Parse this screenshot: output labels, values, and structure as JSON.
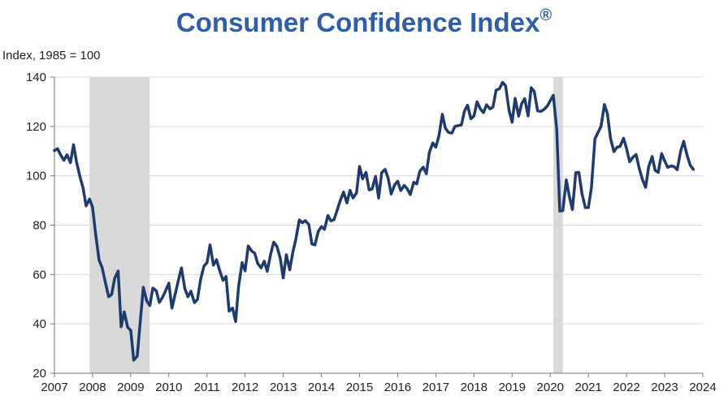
{
  "chart_data": {
    "type": "line",
    "title": "Consumer Confidence Index",
    "title_mark": "®",
    "ylabel": "Index, 1985 = 100",
    "xlabel": "",
    "ylim": [
      20,
      140
    ],
    "xlim": [
      2007,
      2024
    ],
    "y_ticks": [
      20,
      40,
      60,
      80,
      100,
      120,
      140
    ],
    "x_ticks": [
      2007,
      2008,
      2009,
      2010,
      2011,
      2012,
      2013,
      2014,
      2015,
      2016,
      2017,
      2018,
      2019,
      2020,
      2021,
      2022,
      2023,
      2024
    ],
    "grid": "horizontal",
    "line_color": "#1f3b6e",
    "recession_color": "#d9d9d9",
    "recessions": [
      [
        2007.92,
        2009.5
      ],
      [
        2020.08,
        2020.33
      ]
    ],
    "series": [
      {
        "x": [
          2007.0,
          2007.08,
          2007.17,
          2007.25,
          2007.33,
          2007.42,
          2007.5,
          2007.58,
          2007.67,
          2007.75,
          2007.83,
          2007.92,
          2008.0,
          2008.08,
          2008.17,
          2008.25,
          2008.33,
          2008.42,
          2008.5,
          2008.58,
          2008.67,
          2008.75,
          2008.83,
          2008.92,
          2009.0,
          2009.08,
          2009.17,
          2009.25,
          2009.33,
          2009.42,
          2009.5,
          2009.58,
          2009.67,
          2009.75,
          2009.83,
          2009.92,
          2010.0,
          2010.08,
          2010.17,
          2010.25,
          2010.33,
          2010.42,
          2010.5,
          2010.58,
          2010.67,
          2010.75,
          2010.83,
          2010.92,
          2011.0,
          2011.08,
          2011.17,
          2011.25,
          2011.33,
          2011.42,
          2011.5,
          2011.58,
          2011.67,
          2011.75,
          2011.83,
          2011.92,
          2012.0,
          2012.08,
          2012.17,
          2012.25,
          2012.33,
          2012.42,
          2012.5,
          2012.58,
          2012.67,
          2012.75,
          2012.83,
          2012.92,
          2013.0,
          2013.08,
          2013.17,
          2013.25,
          2013.33,
          2013.42,
          2013.5,
          2013.58,
          2013.67,
          2013.75,
          2013.83,
          2013.92,
          2014.0,
          2014.08,
          2014.17,
          2014.25,
          2014.33,
          2014.42,
          2014.5,
          2014.58,
          2014.67,
          2014.75,
          2014.83,
          2014.92,
          2015.0,
          2015.08,
          2015.17,
          2015.25,
          2015.33,
          2015.42,
          2015.5,
          2015.58,
          2015.67,
          2015.75,
          2015.83,
          2015.92,
          2016.0,
          2016.08,
          2016.17,
          2016.25,
          2016.33,
          2016.42,
          2016.5,
          2016.58,
          2016.67,
          2016.75,
          2016.83,
          2016.92,
          2017.0,
          2017.08,
          2017.17,
          2017.25,
          2017.33,
          2017.42,
          2017.5,
          2017.58,
          2017.67,
          2017.75,
          2017.83,
          2017.92,
          2018.0,
          2018.08,
          2018.17,
          2018.25,
          2018.33,
          2018.42,
          2018.5,
          2018.58,
          2018.67,
          2018.75,
          2018.83,
          2018.92,
          2019.0,
          2019.08,
          2019.17,
          2019.25,
          2019.33,
          2019.42,
          2019.5,
          2019.58,
          2019.67,
          2019.75,
          2019.83,
          2019.92,
          2020.0,
          2020.08,
          2020.17,
          2020.25,
          2020.33,
          2020.42,
          2020.5,
          2020.58,
          2020.67,
          2020.75,
          2020.83,
          2020.92,
          2021.0,
          2021.08,
          2021.17,
          2021.25,
          2021.33,
          2021.42,
          2021.5,
          2021.58,
          2021.67,
          2021.75,
          2021.83,
          2021.92,
          2022.0,
          2022.08,
          2022.17,
          2022.25,
          2022.33,
          2022.42,
          2022.5,
          2022.58,
          2022.67,
          2022.75,
          2022.83,
          2022.92,
          2023.0,
          2023.08,
          2023.17,
          2023.25,
          2023.33,
          2023.42,
          2023.5,
          2023.58,
          2023.67,
          2023.75
        ],
        "values": [
          110.2,
          111.0,
          108.2,
          106.3,
          108.5,
          105.3,
          112.6,
          105.6,
          99.5,
          95.2,
          87.8,
          90.6,
          87.3,
          76.4,
          65.9,
          62.8,
          57.2,
          51.0,
          51.9,
          58.5,
          61.4,
          38.8,
          44.9,
          38.6,
          37.4,
          25.3,
          26.9,
          40.8,
          54.8,
          49.3,
          47.4,
          54.5,
          53.4,
          48.7,
          50.6,
          53.6,
          56.5,
          46.4,
          52.3,
          57.7,
          62.7,
          54.3,
          51.0,
          53.2,
          48.6,
          49.9,
          57.8,
          63.4,
          64.8,
          72.0,
          63.8,
          66.0,
          61.7,
          57.6,
          59.2,
          45.2,
          46.4,
          40.9,
          55.2,
          64.8,
          61.5,
          71.6,
          69.5,
          68.7,
          64.4,
          62.7,
          65.4,
          61.3,
          68.4,
          73.1,
          71.5,
          66.7,
          58.6,
          68.0,
          61.9,
          69.0,
          74.3,
          82.1,
          81.0,
          81.8,
          80.2,
          72.4,
          72.0,
          77.5,
          79.4,
          78.3,
          83.9,
          81.7,
          82.2,
          86.4,
          90.3,
          93.4,
          89.0,
          94.1,
          91.0,
          93.1,
          103.8,
          98.8,
          101.4,
          94.3,
          94.6,
          99.8,
          91.0,
          101.3,
          102.6,
          99.1,
          92.6,
          96.3,
          97.8,
          94.0,
          96.1,
          94.7,
          92.4,
          97.4,
          96.7,
          101.8,
          103.5,
          100.8,
          109.4,
          113.3,
          111.6,
          116.1,
          124.9,
          119.4,
          117.6,
          117.3,
          120.0,
          120.3,
          120.6,
          126.2,
          128.6,
          123.1,
          124.3,
          130.0,
          127.0,
          125.6,
          128.8,
          127.1,
          127.9,
          134.7,
          135.3,
          137.9,
          136.4,
          126.6,
          121.7,
          131.4,
          124.2,
          129.2,
          131.3,
          124.3,
          135.7,
          134.2,
          126.3,
          126.1,
          126.8,
          128.2,
          130.4,
          132.6,
          118.8,
          85.7,
          85.9,
          98.3,
          91.7,
          86.3,
          101.3,
          101.4,
          92.9,
          87.1,
          87.1,
          95.2,
          114.9,
          117.5,
          120.0,
          128.9,
          125.1,
          115.2,
          109.8,
          111.6,
          111.9,
          115.2,
          111.1,
          105.7,
          107.6,
          108.6,
          103.2,
          98.4,
          95.3,
          103.6,
          107.8,
          102.2,
          101.4,
          109.0,
          106.0,
          103.4,
          104.0,
          103.7,
          102.5,
          110.1,
          114.0,
          108.7,
          104.3,
          102.6
        ]
      }
    ]
  }
}
